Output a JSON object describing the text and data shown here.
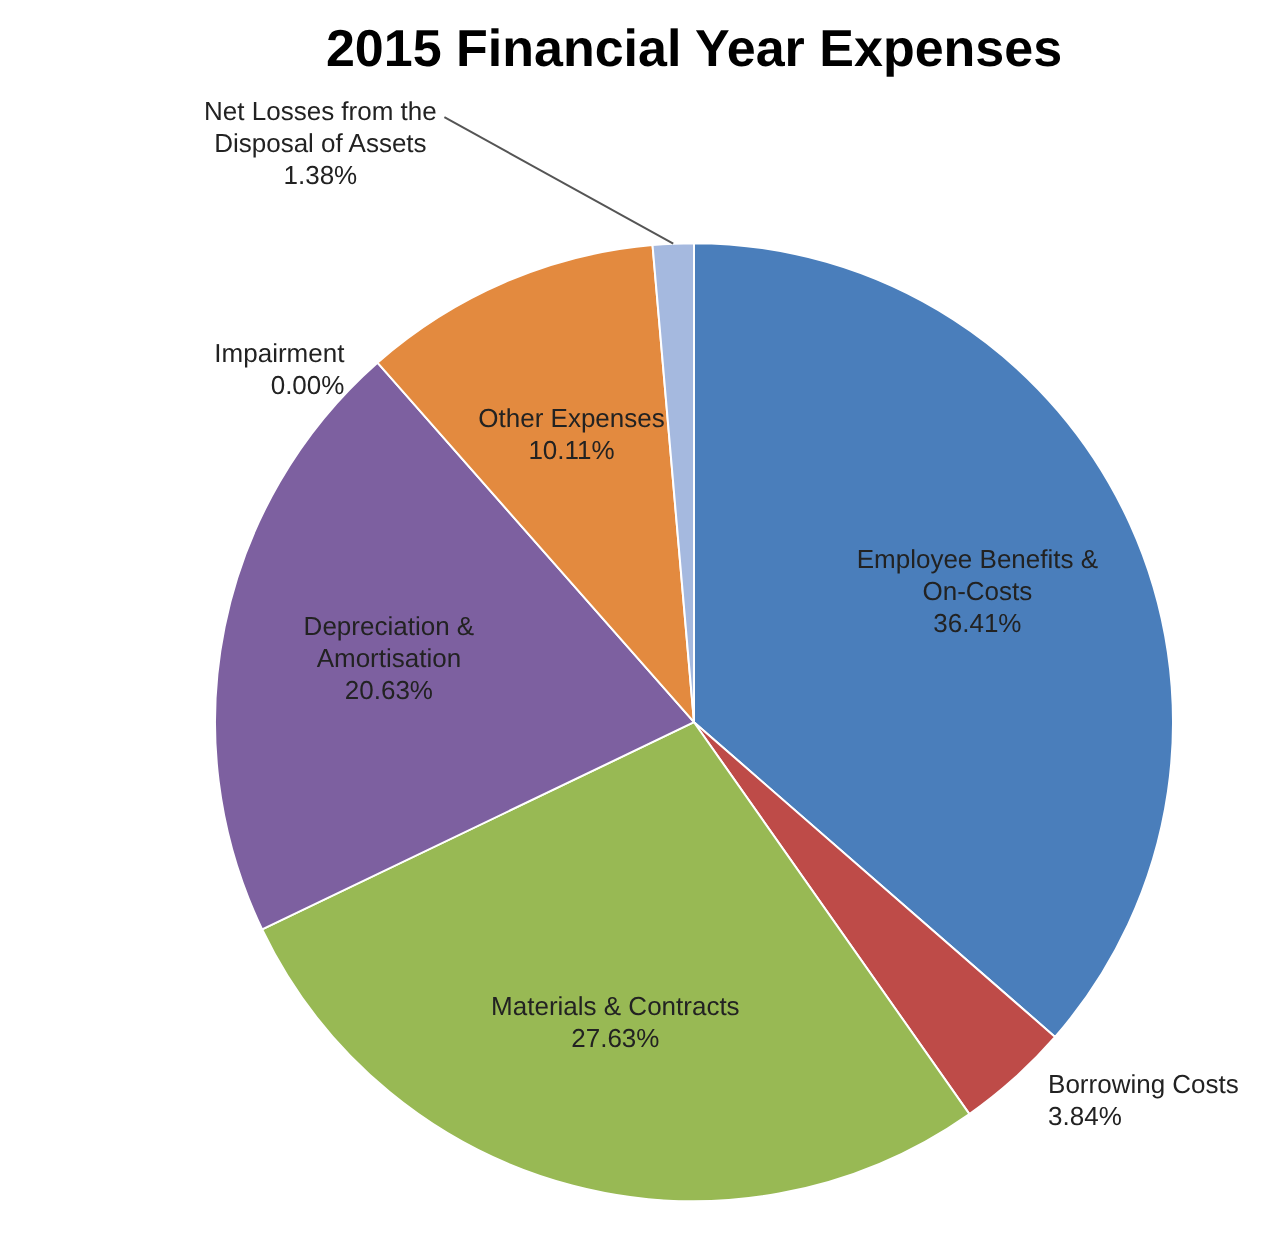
{
  "chart_data": {
    "type": "pie",
    "title": "2015 Financial Year Expenses",
    "categories": [
      "Employee Benefits & On-Costs",
      "Borrowing Costs",
      "Materials & Contracts",
      "Depreciation & Amortisation",
      "Impairment",
      "Other Expenses",
      "Net Losses from the Disposal of Assets"
    ],
    "values": [
      36.41,
      3.84,
      27.63,
      20.63,
      0.0,
      10.11,
      1.38
    ],
    "value_labels": [
      "36.41%",
      "3.84%",
      "27.63%",
      "20.63%",
      "0.00%",
      "10.11%",
      "1.38%"
    ],
    "colors": [
      "#4a7ebb",
      "#be4b48",
      "#98b954",
      "#7d60a0",
      "#46aac5",
      "#e38a3f",
      "#a5b9df"
    ],
    "legend": false
  }
}
